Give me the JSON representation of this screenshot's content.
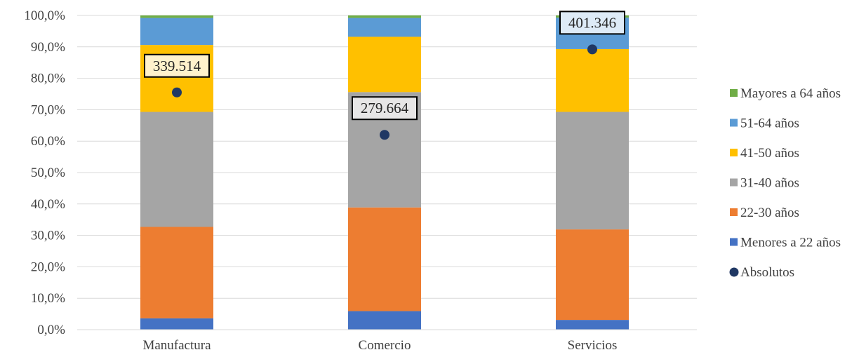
{
  "chart_data": {
    "type": "bar",
    "stacked": true,
    "categories": [
      "Manufactura",
      "Comercio",
      "Servicios"
    ],
    "ylim": [
      0,
      100
    ],
    "yticks": [
      "0,0%",
      "10,0%",
      "20,0%",
      "30,0%",
      "40,0%",
      "50,0%",
      "60,0%",
      "70,0%",
      "80,0%",
      "90,0%",
      "100,0%"
    ],
    "grid": true,
    "legend_position": "right",
    "series": [
      {
        "name": "Menores a 22 años",
        "color": "#4472c4",
        "values": [
          3.6,
          5.9,
          3.1
        ]
      },
      {
        "name": "22-30 años",
        "color": "#ed7d31",
        "values": [
          29.1,
          33.0,
          28.8
        ]
      },
      {
        "name": "31-40 años",
        "color": "#a5a5a5",
        "values": [
          36.6,
          36.7,
          37.4
        ]
      },
      {
        "name": "41-50 años",
        "color": "#ffc000",
        "values": [
          21.3,
          17.6,
          20.0
        ]
      },
      {
        "name": "51-64 años",
        "color": "#5b9bd5",
        "values": [
          8.6,
          6.0,
          10.0
        ]
      },
      {
        "name": "Mayores a 64 años",
        "color": "#70ad47",
        "values": [
          0.8,
          0.8,
          0.7
        ]
      }
    ],
    "absolutos": {
      "name": "Absolutos",
      "color": "#203864",
      "position_pct": [
        75.5,
        62.0,
        89.2
      ],
      "labels": [
        "339.514",
        "279.664",
        "401.346"
      ],
      "label_fill": [
        "#fff2cc",
        "#e7e6e6",
        "#deebf7"
      ]
    },
    "legend_order": [
      "Mayores a 64 años",
      "51-64 años",
      "41-50 años",
      "31-40 años",
      "22-30 años",
      "Menores a 22 años",
      "Absolutos"
    ]
  }
}
